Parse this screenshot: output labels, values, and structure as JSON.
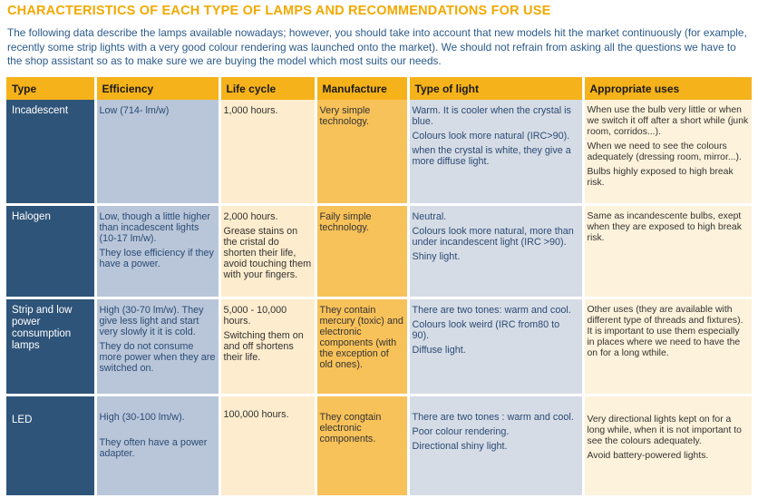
{
  "title": "CHARACTERISTICS OF EACH TYPE OF LAMPS AND RECOMMENDATIONS FOR USE",
  "intro": "The following data describe the lamps available nowadays; however, you should take into account that new models hit the market continuously (for example, recently some strip lights with a very good colour rendering was launched onto the market). We should not refrain from asking all the questions we have to the shop assistant so as to make sure we are buying the model which most suits our needs.",
  "colors": {
    "title": "#f2a900",
    "intro": "#2a5a8a",
    "header": "#f5b21a",
    "type_column": "#2f5479",
    "efficiency_column": "#b9c6d9",
    "lifecycle_column": "#fdeccd",
    "manufacture_column": "#f8c25a",
    "light_column": "#d6dce6",
    "uses_column": "#fdf2db"
  },
  "headers": {
    "type": "Type",
    "efficiency": "Efficiency",
    "life": "Life cycle",
    "manufacture": "Manufacture",
    "light": "Type of light",
    "uses": "Appropriate uses"
  },
  "rows": [
    {
      "type": "Incadescent",
      "efficiency": [
        "Low (714- lm/w)"
      ],
      "life": [
        "1,000 hours."
      ],
      "manufacture": [
        "Very simple technology."
      ],
      "light": [
        "Warm. It is cooler when the crystal is blue.",
        "Colours look more natural (IRC>90).",
        "when the crystal is white, they give a more diffuse light."
      ],
      "uses": [
        "When use the bulb very little or when we switch it off after a short while (junk room, corridos...).",
        "When we need to see the colours adequately (dressing room, mirror...).",
        "Bulbs highly exposed to high break risk."
      ]
    },
    {
      "type": "Halogen",
      "efficiency": [
        "Low, though a little higher than incadescent lights (10-17 lm/w).",
        "They lose efficiency if they have a power."
      ],
      "life": [
        "2,000 hours.",
        "Grease stains on the cristal do shorten their life, avoid touching them with your fingers."
      ],
      "manufacture": [
        "Faily simple technology."
      ],
      "light": [
        "Neutral.",
        "Colours look more natural, more than under incandescent light (IRC >90).",
        "Shiny light."
      ],
      "uses": [
        "Same as incandescente bulbs, exept when they are exposed to high break risk."
      ]
    },
    {
      "type": "Strip and low power consumption lamps",
      "efficiency": [
        "High (30-70 lm/w). They give less light and start very slowly it it is cold.",
        "They do not consume more power when they are switched on."
      ],
      "life": [
        "5,000 - 10,000 hours.",
        "Switching them on and off shortens their life."
      ],
      "manufacture": [
        "They contain mercury (toxic) and electronic components (with the exception of old ones)."
      ],
      "light": [
        "There are two tones: warm and cool.",
        "Colours look weird (IRC from80 to 90).",
        "Diffuse light."
      ],
      "uses": [
        "Other uses (they are available with different type of threads and fixtures). It is important to use them especially in places where we need to have the on for a long wthile."
      ]
    },
    {
      "type": "LED",
      "efficiency": [
        "High (30-100 lm/w).",
        "They often have a power adapter."
      ],
      "life": [
        "100,000 hours."
      ],
      "manufacture": [
        "They congtain electronic components."
      ],
      "light": [
        "There are two tones : warm and cool.",
        "Poor colour rendering.",
        "Directional shiny light."
      ],
      "uses": [
        "Very directional lights kept on for a long while, when it is not important to see the colours adequately.",
        "Avoid battery-powered lights."
      ]
    }
  ]
}
